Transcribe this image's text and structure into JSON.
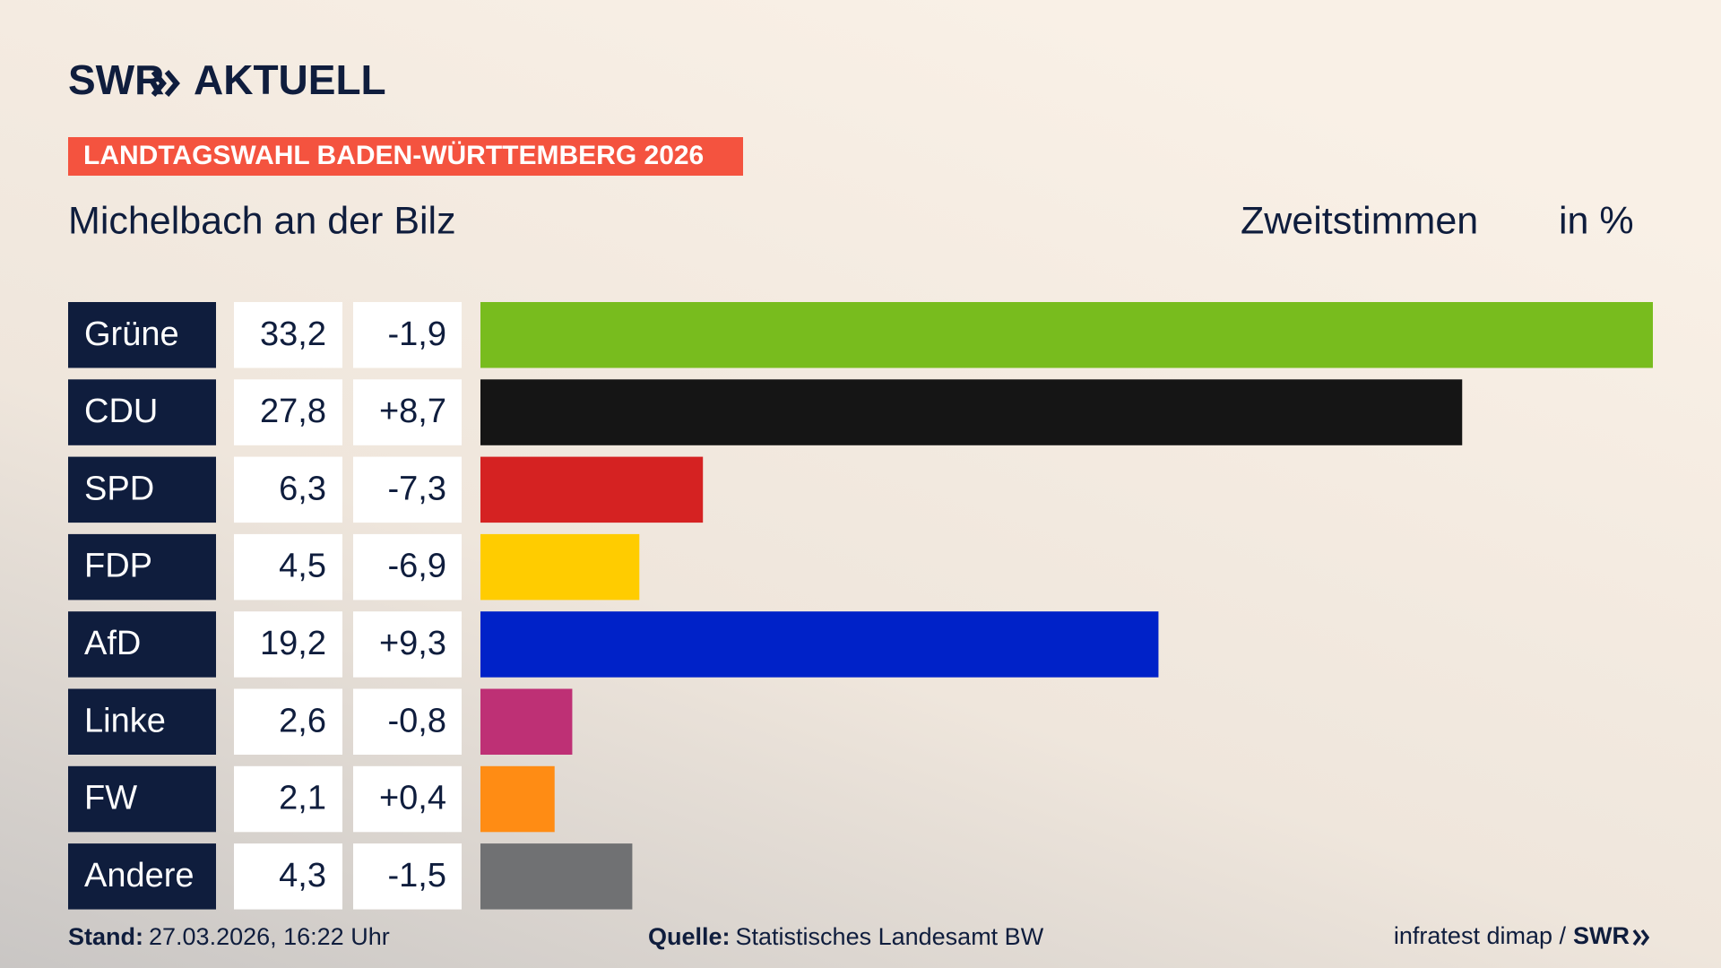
{
  "brand": {
    "name": "SWR",
    "product": "AKTUELL"
  },
  "banner": "LANDTAGSWAHL BADEN-WÜRTTEMBERG 2026",
  "chart_data": {
    "type": "bar",
    "orientation": "horizontal",
    "title": "Michelbach an der Bilz",
    "measure": "Zweitstimmen",
    "unit": "in %",
    "categories": [
      "Grüne",
      "CDU",
      "SPD",
      "FDP",
      "AfD",
      "Linke",
      "FW",
      "Andere"
    ],
    "values": [
      33.2,
      27.8,
      6.3,
      4.5,
      19.2,
      2.6,
      2.1,
      4.3
    ],
    "value_labels": [
      "33,2",
      "27,8",
      "6,3",
      "4,5",
      "19,2",
      "2,6",
      "2,1",
      "4,3"
    ],
    "colors": [
      "#78bc1e",
      "#151515",
      "#d52222",
      "#ffcc00",
      "#0022c8",
      "#be3075",
      "#ff8c14",
      "#707173"
    ],
    "changes": {
      "values": [
        -1.9,
        8.7,
        -7.3,
        -6.9,
        9.3,
        -0.8,
        0.4,
        -1.5
      ],
      "value_labels": [
        "-1,9",
        "+8,7",
        "-7,3",
        "-6,9",
        "+9,3",
        "-0,8",
        "+0,4",
        "-1,5"
      ]
    }
  },
  "footer": {
    "stand_label": "Stand:",
    "stand": "27.03.2026, 16:22 Uhr",
    "source_label": "Quelle:",
    "source": "Statistisches Landesamt BW",
    "credit": "infratest dimap /",
    "credit_brand": "SWR"
  }
}
